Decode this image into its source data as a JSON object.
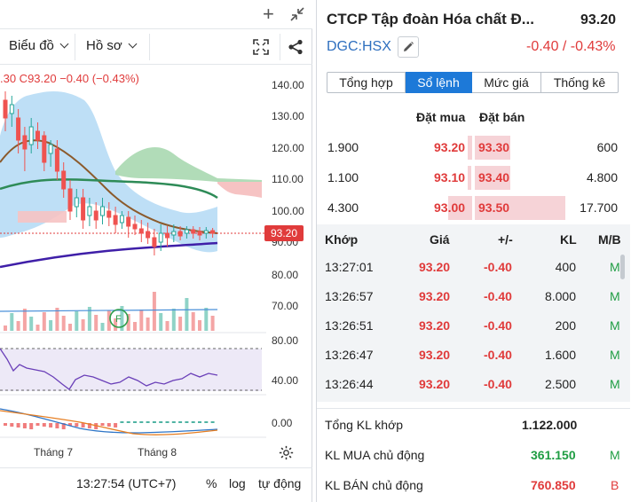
{
  "chart": {
    "toolbar": {
      "indicators_label": "Biểu đồ",
      "profile_label": "Hồ sơ"
    },
    "ohlc_text": ".30  C93.20  −0.40 (−0.43%)",
    "y_labels": [
      "140.00",
      "130.00",
      "120.00",
      "110.00",
      "100.00",
      "90.00",
      "80.00",
      "70.00"
    ],
    "last_price_tag": "93.20",
    "rsi_labels": [
      "80.00",
      "40.00"
    ],
    "macd_label": "0.00",
    "x_labels": [
      "Tháng 7",
      "Tháng 8"
    ],
    "time": "13:27:54 (UTC+7)",
    "scale_percent": "%",
    "scale_log": "log",
    "scale_auto": "tự động",
    "colors": {
      "up": "#26a69a",
      "down": "#ef5350",
      "ma_brown": "#8b5a2b",
      "ma_green": "#2e8b57",
      "ma_purple": "#3f1fa8",
      "band": "#b3d9f5"
    }
  },
  "quote": {
    "company_name": "CTCP Tập đoàn Hóa chất Đ...",
    "last_price": "93.20",
    "ticker": "DGC:HSX",
    "change": "-0.40 / -0.43%",
    "tabs": [
      "Tổng hợp",
      "Sổ lệnh",
      "Mức giá",
      "Thống kê"
    ],
    "active_tab": 1,
    "orderbook": {
      "bid_header": "Đặt mua",
      "ask_header": "Đặt bán",
      "rows": [
        {
          "bid_vol": "1.900",
          "bid": "93.20",
          "ask": "93.30",
          "ask_vol": "600"
        },
        {
          "bid_vol": "1.100",
          "bid": "93.10",
          "ask": "93.40",
          "ask_vol": "4.800"
        },
        {
          "bid_vol": "4.300",
          "bid": "93.00",
          "ask": "93.50",
          "ask_vol": "17.700"
        }
      ]
    },
    "trades": {
      "headers": [
        "Khớp",
        "Giá",
        "+/-",
        "KL",
        "M/B"
      ],
      "rows": [
        {
          "time": "13:27:01",
          "price": "93.20",
          "chg": "-0.40",
          "vol": "400",
          "side": "M"
        },
        {
          "time": "13:26:57",
          "price": "93.20",
          "chg": "-0.40",
          "vol": "8.000",
          "side": "M"
        },
        {
          "time": "13:26:51",
          "price": "93.20",
          "chg": "-0.40",
          "vol": "200",
          "side": "M"
        },
        {
          "time": "13:26:47",
          "price": "93.20",
          "chg": "-0.40",
          "vol": "1.600",
          "side": "M"
        },
        {
          "time": "13:26:44",
          "price": "93.20",
          "chg": "-0.40",
          "vol": "2.500",
          "side": "M"
        }
      ]
    },
    "summary": [
      {
        "label": "Tổng KL khớp",
        "value": "1.122.000",
        "side": ""
      },
      {
        "label": "KL MUA chủ động",
        "value": "361.150",
        "side": "M"
      },
      {
        "label": "KL BÁN chủ động",
        "value": "760.850",
        "side": "B"
      }
    ]
  }
}
